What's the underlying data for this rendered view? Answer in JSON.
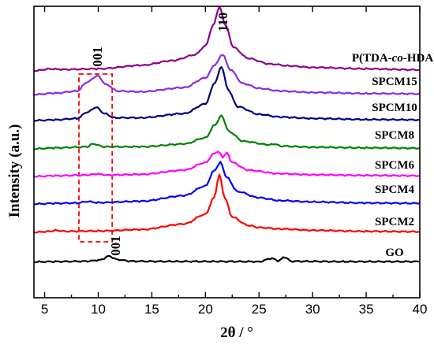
{
  "chart_data": {
    "type": "line",
    "xlabel": "2θ / °",
    "ylabel": "Intensity (a.u.)",
    "xlim": [
      4,
      40
    ],
    "x_ticks": [
      "5",
      "10",
      "15",
      "20",
      "25",
      "30",
      "35",
      "40"
    ],
    "series": [
      {
        "name": "GO",
        "color": "#000000",
        "baseline": 0,
        "points": [
          [
            4,
            0.05
          ],
          [
            6,
            0.1
          ],
          [
            9,
            0.15
          ],
          [
            10.2,
            0.35
          ],
          [
            11,
            0.9
          ],
          [
            11.8,
            0.4
          ],
          [
            13,
            0.15
          ],
          [
            17,
            0.12
          ],
          [
            21,
            0.12
          ],
          [
            25,
            0.1
          ],
          [
            26.2,
            0.55
          ],
          [
            26.8,
            0.2
          ],
          [
            27.4,
            0.75
          ],
          [
            28,
            0.15
          ],
          [
            33,
            0.1
          ],
          [
            40,
            0.1
          ]
        ]
      },
      {
        "name": "SPCM2",
        "color": "#ff0000",
        "baseline": 1,
        "points": [
          [
            4,
            0
          ],
          [
            5.5,
            0.15
          ],
          [
            6,
            0.3
          ],
          [
            7,
            0.15
          ],
          [
            10,
            0.2
          ],
          [
            14,
            0.4
          ],
          [
            18,
            1.2
          ],
          [
            20,
            2.6
          ],
          [
            20.8,
            5.0
          ],
          [
            21.3,
            8.3
          ],
          [
            21.8,
            5.0
          ],
          [
            22.5,
            2.2
          ],
          [
            24,
            1.0
          ],
          [
            25,
            0.7
          ],
          [
            27,
            0.5
          ],
          [
            30,
            0.3
          ],
          [
            35,
            0.15
          ],
          [
            40,
            0.1
          ]
        ]
      },
      {
        "name": "SPCM4",
        "color": "#0000ff",
        "baseline": 2,
        "points": [
          [
            4,
            0
          ],
          [
            6,
            0.1
          ],
          [
            8,
            0.15
          ],
          [
            9,
            0.35
          ],
          [
            10,
            0.2
          ],
          [
            14,
            0.4
          ],
          [
            18,
            1.2
          ],
          [
            20,
            2.6
          ],
          [
            20.8,
            4.8
          ],
          [
            21.4,
            6.0
          ],
          [
            22,
            3.8
          ],
          [
            23,
            1.8
          ],
          [
            25,
            0.9
          ],
          [
            27,
            0.5
          ],
          [
            30,
            0.3
          ],
          [
            35,
            0.15
          ],
          [
            40,
            0.1
          ]
        ]
      },
      {
        "name": "SPCM6",
        "color": "#ff00ff",
        "baseline": 3,
        "points": [
          [
            4,
            0
          ],
          [
            6,
            0.1
          ],
          [
            9,
            0.2
          ],
          [
            9.8,
            0.35
          ],
          [
            11,
            0.2
          ],
          [
            14,
            0.3
          ],
          [
            18,
            0.9
          ],
          [
            20,
            2.0
          ],
          [
            20.8,
            3.3
          ],
          [
            21.2,
            3.6
          ],
          [
            21.6,
            2.8
          ],
          [
            22,
            3.4
          ],
          [
            22.5,
            2.0
          ],
          [
            24,
            0.9
          ],
          [
            27,
            0.4
          ],
          [
            30,
            0.25
          ],
          [
            35,
            0.15
          ],
          [
            40,
            0.1
          ]
        ]
      },
      {
        "name": "SPCM8",
        "color": "#008000",
        "baseline": 4,
        "points": [
          [
            4,
            0
          ],
          [
            6,
            0.15
          ],
          [
            9,
            0.3
          ],
          [
            9.5,
            0.75
          ],
          [
            10.5,
            0.3
          ],
          [
            14,
            0.3
          ],
          [
            18,
            0.7
          ],
          [
            20,
            1.6
          ],
          [
            20.9,
            3.5
          ],
          [
            21.5,
            4.8
          ],
          [
            22.2,
            2.5
          ],
          [
            23.5,
            1.1
          ],
          [
            26,
            0.6
          ],
          [
            26.5,
            0.7
          ],
          [
            27,
            0.4
          ],
          [
            30,
            0.25
          ],
          [
            35,
            0.15
          ],
          [
            40,
            0.1
          ]
        ]
      },
      {
        "name": "SPCM10",
        "color": "#000080",
        "baseline": 5,
        "points": [
          [
            4,
            0
          ],
          [
            6,
            0.1
          ],
          [
            8,
            0.3
          ],
          [
            9,
            1.2
          ],
          [
            9.8,
            1.9
          ],
          [
            10.6,
            1.0
          ],
          [
            11.5,
            0.4
          ],
          [
            14,
            0.4
          ],
          [
            18,
            1.0
          ],
          [
            20,
            2.4
          ],
          [
            20.9,
            5.5
          ],
          [
            21.5,
            7.8
          ],
          [
            22.1,
            4.5
          ],
          [
            23,
            2.0
          ],
          [
            25,
            0.9
          ],
          [
            27,
            0.5
          ],
          [
            30,
            0.3
          ],
          [
            35,
            0.15
          ],
          [
            40,
            0.1
          ]
        ]
      },
      {
        "name": "SPCM15",
        "color": "#8a2be2",
        "baseline": 6,
        "points": [
          [
            4,
            0
          ],
          [
            6,
            0.2
          ],
          [
            8,
            0.5
          ],
          [
            9,
            1.8
          ],
          [
            9.9,
            2.7
          ],
          [
            10.8,
            1.4
          ],
          [
            11.8,
            0.5
          ],
          [
            14,
            0.4
          ],
          [
            18,
            1.0
          ],
          [
            20,
            2.4
          ],
          [
            20.9,
            4.3
          ],
          [
            21.6,
            5.8
          ],
          [
            22.3,
            3.6
          ],
          [
            23.5,
            1.6
          ],
          [
            25,
            0.9
          ],
          [
            27,
            0.5
          ],
          [
            30,
            0.3
          ],
          [
            35,
            0.15
          ],
          [
            40,
            0.1
          ]
        ]
      },
      {
        "name": "P(TDA-co-HDA)",
        "name_parts": [
          "P(TDA-",
          "co",
          "-HDA)"
        ],
        "color": "#8b008b",
        "baseline": 7,
        "points": [
          [
            4,
            0
          ],
          [
            5.5,
            0.3
          ],
          [
            6.5,
            0.2
          ],
          [
            10,
            0.3
          ],
          [
            14,
            0.8
          ],
          [
            17,
            1.5
          ],
          [
            19,
            2.3
          ],
          [
            20,
            3.6
          ],
          [
            20.7,
            6.5
          ],
          [
            21.3,
            9.2
          ],
          [
            21.9,
            6.5
          ],
          [
            22.6,
            3.4
          ],
          [
            24,
            1.8
          ],
          [
            26,
            1.0
          ],
          [
            28,
            0.7
          ],
          [
            30,
            0.5
          ],
          [
            35,
            0.3
          ],
          [
            40,
            0.15
          ]
        ]
      }
    ],
    "annotations": [
      {
        "text": "001",
        "x": 9.9,
        "series": "SPCM15"
      },
      {
        "text": "110",
        "x": 21.6,
        "series": "P(TDA-co-HDA)"
      },
      {
        "text": "001",
        "x": 11.6,
        "series": "GO"
      }
    ],
    "highlight_box": {
      "x_range": [
        8.2,
        11.3
      ],
      "series_range": [
        "SPCM2",
        "SPCM15"
      ],
      "color": "#ff0000",
      "style": "dashed"
    },
    "grid": false,
    "legend": "inline labels at right"
  }
}
